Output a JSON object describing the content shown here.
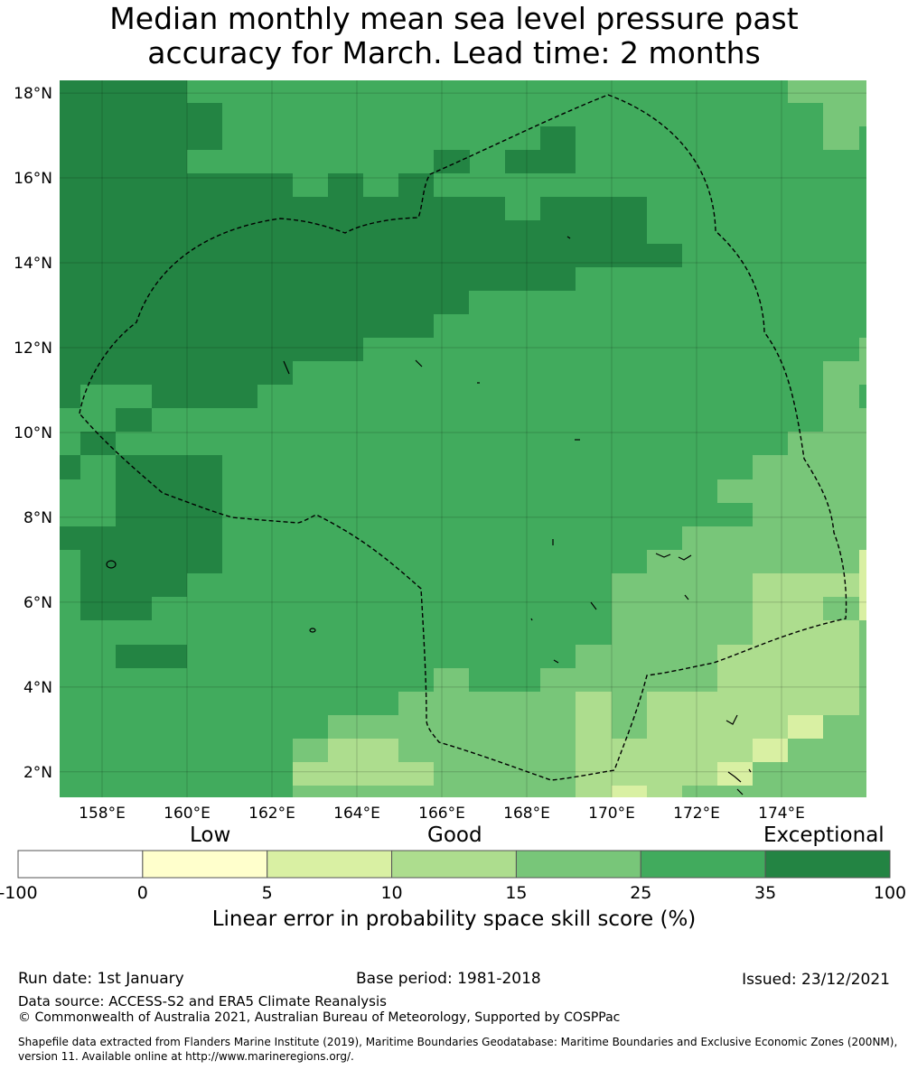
{
  "title_line1": "Median monthly mean sea level pressure past",
  "title_line2": "accuracy for March. Lead time: 2 months",
  "map": {
    "lat_labels": [
      "18°N",
      "16°N",
      "14°N",
      "12°N",
      "10°N",
      "8°N",
      "6°N",
      "4°N",
      "2°N"
    ],
    "lat_values": [
      18,
      16,
      14,
      12,
      10,
      8,
      6,
      4,
      2
    ],
    "lon_labels": [
      "158°E",
      "160°E",
      "162°E",
      "164°E",
      "166°E",
      "168°E",
      "170°E",
      "172°E",
      "174°E"
    ],
    "lon_values": [
      158,
      160,
      162,
      164,
      166,
      168,
      170,
      172,
      174
    ],
    "extent": {
      "lon_min": 157.0,
      "lon_max": 176.0,
      "lat_min": 1.4,
      "lat_max": 18.3
    }
  },
  "colorbar": {
    "categories": [
      "Low",
      "Good",
      "Exceptional"
    ],
    "bounds": [
      "-100",
      "0",
      "5",
      "10",
      "15",
      "25",
      "35",
      "100"
    ],
    "colors": [
      "#ffffff",
      "#ffffcc",
      "#d9f0a3",
      "#addd8e",
      "#78c679",
      "#41ab5d",
      "#238443"
    ],
    "label": "Linear error in probability space skill score (%)"
  },
  "footer": {
    "run_date": "Run date: 1st January",
    "base_period": "Base period: 1981-2018",
    "issued": "Issued: 23/12/2021",
    "data_source": "Data source: ACCESS-S2 and ERA5 Climate Reanalysis",
    "copyright": "© Commonwealth of Australia 2021, Australian Bureau of Meteorology, Supported by COSPPac",
    "shapefile_line1": "Shapefile data extracted from Flanders Marine Institute (2019), Maritime Boundaries Geodatabase: Maritime Boundaries and Exclusive Economic Zones (200NM),",
    "shapefile_line2": "version 11. Available online at http://www.marineregions.org/."
  }
}
